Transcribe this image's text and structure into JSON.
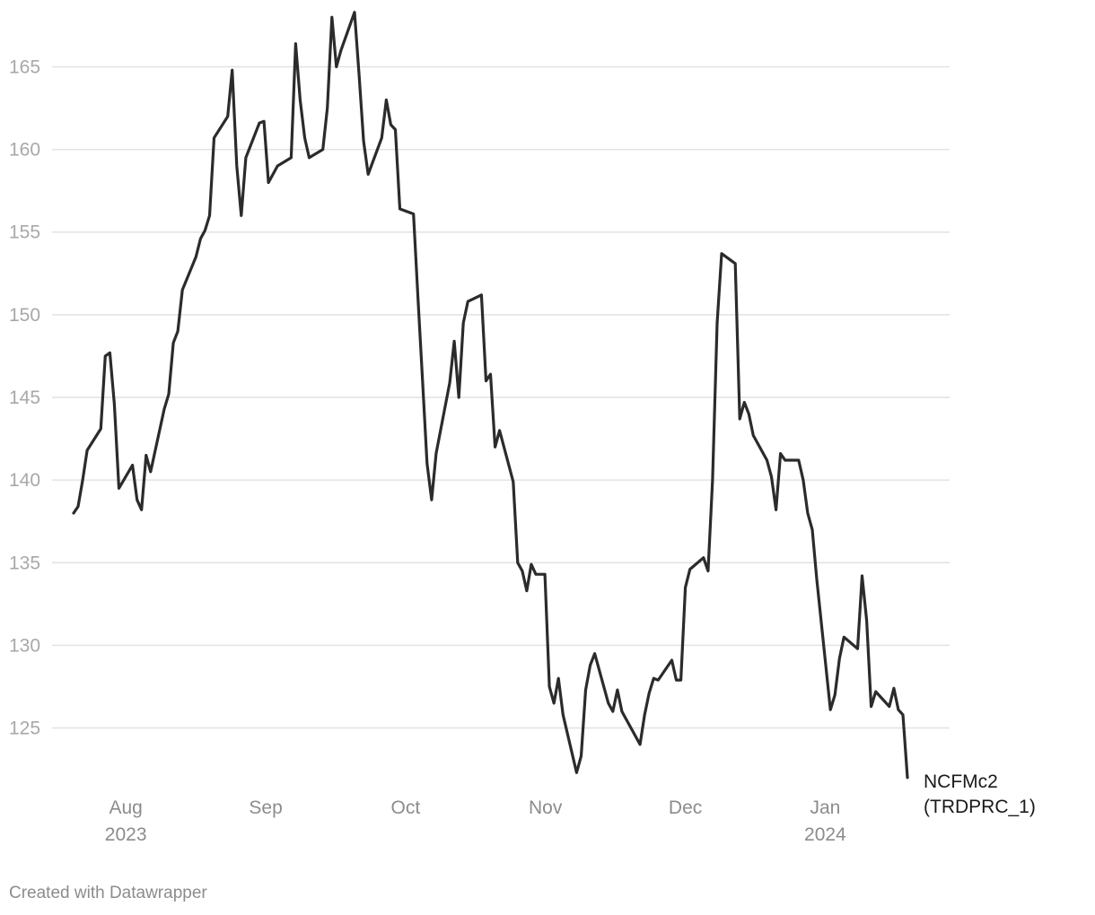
{
  "chart_data": {
    "type": "line",
    "title": "",
    "xlabel": "",
    "ylabel": "",
    "ylim": [
      121.5,
      168.5
    ],
    "y_ticks": [
      125,
      130,
      135,
      140,
      145,
      150,
      155,
      160,
      165
    ],
    "x_ticks": [
      {
        "label": "Aug",
        "sublabel": "2023",
        "x": 2023.5833
      },
      {
        "label": "Sep",
        "sublabel": "",
        "x": 2023.6667
      },
      {
        "label": "Oct",
        "sublabel": "",
        "x": 2023.75
      },
      {
        "label": "Nov",
        "sublabel": "",
        "x": 2023.8333
      },
      {
        "label": "Dec",
        "sublabel": "",
        "x": 2023.9167
      },
      {
        "label": "Jan",
        "sublabel": "2024",
        "x": 2024.0
      }
    ],
    "x_range": [
      2023.5522,
      2024.0645
    ],
    "grid": true,
    "series": [
      {
        "name_line1": "NCFMc2",
        "name_line2": "(TRDPRC_1)",
        "color": "#2b2b2b",
        "points": [
          [
            2023.5522,
            138.0
          ],
          [
            2023.5549,
            138.4
          ],
          [
            2023.5576,
            140.0
          ],
          [
            2023.5603,
            141.8
          ],
          [
            2023.5684,
            143.1
          ],
          [
            2023.5711,
            147.5
          ],
          [
            2023.5738,
            147.7
          ],
          [
            2023.5765,
            144.6
          ],
          [
            2023.5792,
            139.5
          ],
          [
            2023.5873,
            140.9
          ],
          [
            2023.59,
            138.8
          ],
          [
            2023.5927,
            138.2
          ],
          [
            2023.5954,
            141.5
          ],
          [
            2023.5981,
            140.5
          ],
          [
            2023.6062,
            144.3
          ],
          [
            2023.6089,
            145.2
          ],
          [
            2023.6116,
            148.3
          ],
          [
            2023.6143,
            149.0
          ],
          [
            2023.617,
            151.5
          ],
          [
            2023.6251,
            153.5
          ],
          [
            2023.6278,
            154.6
          ],
          [
            2023.6305,
            155.1
          ],
          [
            2023.6332,
            156.0
          ],
          [
            2023.6359,
            160.7
          ],
          [
            2023.644,
            162.0
          ],
          [
            2023.6467,
            164.8
          ],
          [
            2023.6494,
            159.0
          ],
          [
            2023.6521,
            156.0
          ],
          [
            2023.6548,
            159.5
          ],
          [
            2023.6629,
            161.6
          ],
          [
            2023.6656,
            161.7
          ],
          [
            2023.6683,
            158.0
          ],
          [
            2023.6737,
            159.0
          ],
          [
            2023.6818,
            159.5
          ],
          [
            2023.6845,
            166.4
          ],
          [
            2023.6872,
            163.0
          ],
          [
            2023.6899,
            160.7
          ],
          [
            2023.6926,
            159.5
          ],
          [
            2023.7007,
            160.0
          ],
          [
            2023.7034,
            162.5
          ],
          [
            2023.7061,
            168.0
          ],
          [
            2023.7088,
            165.0
          ],
          [
            2023.7115,
            166.0
          ],
          [
            2023.7196,
            168.3
          ],
          [
            2023.7223,
            164.5
          ],
          [
            2023.725,
            160.5
          ],
          [
            2023.7277,
            158.5
          ],
          [
            2023.7358,
            160.7
          ],
          [
            2023.7385,
            163.0
          ],
          [
            2023.7412,
            161.5
          ],
          [
            2023.7439,
            161.2
          ],
          [
            2023.7466,
            156.4
          ],
          [
            2023.7547,
            156.1
          ],
          [
            2023.7574,
            151.0
          ],
          [
            2023.7601,
            146.0
          ],
          [
            2023.7628,
            141.0
          ],
          [
            2023.7655,
            138.8
          ],
          [
            2023.7682,
            141.6
          ],
          [
            2023.7763,
            145.9
          ],
          [
            2023.779,
            148.4
          ],
          [
            2023.7817,
            145.0
          ],
          [
            2023.7844,
            149.5
          ],
          [
            2023.7871,
            150.8
          ],
          [
            2023.7952,
            151.2
          ],
          [
            2023.7979,
            146.0
          ],
          [
            2023.8006,
            146.4
          ],
          [
            2023.8033,
            142.0
          ],
          [
            2023.806,
            143.0
          ],
          [
            2023.8141,
            139.9
          ],
          [
            2023.8168,
            135.0
          ],
          [
            2023.8195,
            134.5
          ],
          [
            2023.8222,
            133.3
          ],
          [
            2023.8249,
            134.9
          ],
          [
            2023.8276,
            134.3
          ],
          [
            2023.833,
            134.3
          ],
          [
            2023.8357,
            127.5
          ],
          [
            2023.8384,
            126.5
          ],
          [
            2023.8411,
            128.0
          ],
          [
            2023.8438,
            125.8
          ],
          [
            2023.8519,
            122.3
          ],
          [
            2023.8546,
            123.3
          ],
          [
            2023.8573,
            127.3
          ],
          [
            2023.86,
            128.8
          ],
          [
            2023.8627,
            129.5
          ],
          [
            2023.8708,
            126.5
          ],
          [
            2023.8735,
            126.0
          ],
          [
            2023.8762,
            127.3
          ],
          [
            2023.8789,
            126.0
          ],
          [
            2023.8897,
            124.0
          ],
          [
            2023.8924,
            125.8
          ],
          [
            2023.8951,
            127.1
          ],
          [
            2023.8978,
            128.0
          ],
          [
            2023.9005,
            127.9
          ],
          [
            2023.9086,
            129.1
          ],
          [
            2023.9113,
            127.9
          ],
          [
            2023.914,
            127.9
          ],
          [
            2023.9167,
            133.5
          ],
          [
            2023.9194,
            134.6
          ],
          [
            2023.9275,
            135.3
          ],
          [
            2023.9302,
            134.5
          ],
          [
            2023.9329,
            140.0
          ],
          [
            2023.9356,
            149.5
          ],
          [
            2023.9383,
            153.7
          ],
          [
            2023.9464,
            153.1
          ],
          [
            2023.9491,
            143.7
          ],
          [
            2023.9518,
            144.7
          ],
          [
            2023.9545,
            144.0
          ],
          [
            2023.9572,
            142.7
          ],
          [
            2023.9653,
            141.2
          ],
          [
            2023.968,
            140.2
          ],
          [
            2023.9707,
            138.2
          ],
          [
            2023.9734,
            141.6
          ],
          [
            2023.9761,
            141.2
          ],
          [
            2023.9842,
            141.2
          ],
          [
            2023.9869,
            140.0
          ],
          [
            2023.9896,
            138.0
          ],
          [
            2023.9923,
            137.0
          ],
          [
            2023.995,
            134.0
          ],
          [
            2024.0031,
            126.1
          ],
          [
            2024.0058,
            127.0
          ],
          [
            2024.0085,
            129.2
          ],
          [
            2024.0112,
            130.5
          ],
          [
            2024.0193,
            129.8
          ],
          [
            2024.022,
            134.2
          ],
          [
            2024.0247,
            131.5
          ],
          [
            2024.0274,
            126.3
          ],
          [
            2024.0301,
            127.2
          ],
          [
            2024.0382,
            126.3
          ],
          [
            2024.0409,
            127.4
          ],
          [
            2024.0436,
            126.1
          ],
          [
            2024.0463,
            125.8
          ],
          [
            2024.049,
            122.0
          ]
        ]
      }
    ]
  },
  "footer": {
    "credit": "Created with Datawrapper"
  }
}
